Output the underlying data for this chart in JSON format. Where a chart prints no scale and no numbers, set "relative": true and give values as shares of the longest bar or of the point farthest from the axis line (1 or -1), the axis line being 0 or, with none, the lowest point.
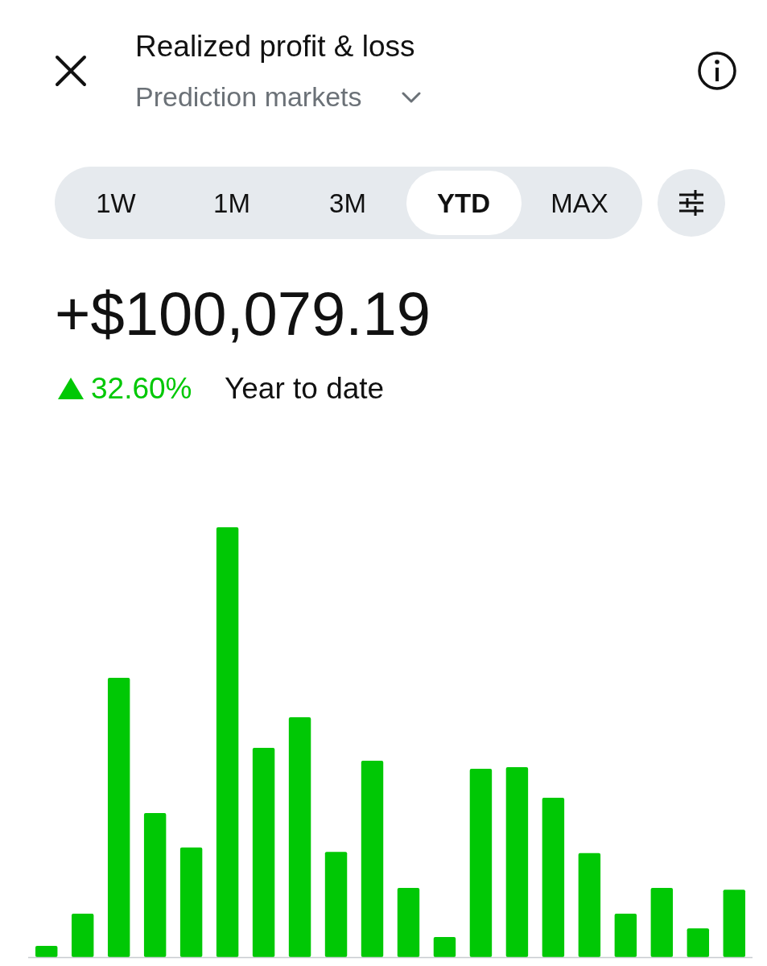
{
  "chart_data": {
    "type": "bar",
    "relative": true,
    "title": "Realized profit & loss",
    "subtitle": "Prediction markets",
    "annotations": [
      "1W",
      "1M",
      "3M",
      "YTD",
      "MAX",
      "+$100,079.19",
      "32.60%",
      "Year to date"
    ],
    "categories": [
      null,
      null,
      null,
      null,
      null,
      null,
      null,
      null,
      null,
      null,
      null,
      null,
      null,
      null,
      null,
      null,
      null,
      null,
      null,
      null
    ],
    "values": [
      0.026,
      0.101,
      0.65,
      0.335,
      0.255,
      1,
      0.487,
      0.558,
      0.245,
      0.457,
      0.161,
      0.047,
      0.438,
      0.442,
      0.371,
      0.242,
      0.101,
      0.161,
      0.067,
      0.157
    ],
    "color": "#00c805"
  }
}
